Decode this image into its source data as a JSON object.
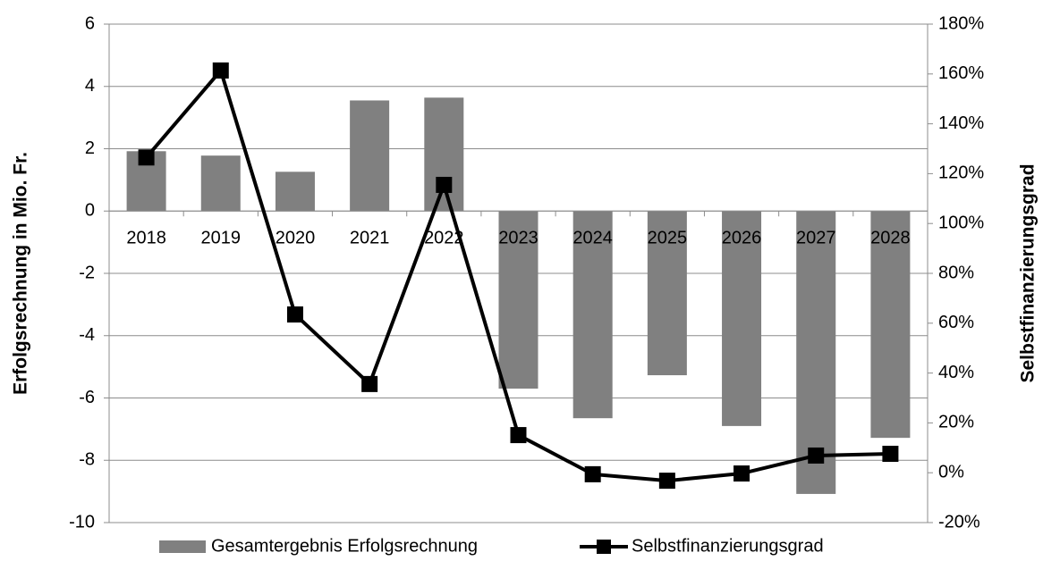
{
  "chart_data": {
    "type": "bar-line",
    "categories": [
      "2018",
      "2019",
      "2020",
      "2021",
      "2022",
      "2023",
      "2024",
      "2025",
      "2026",
      "2027",
      "2028"
    ],
    "ylabel": "Erfolgsrechnung in Mio. Fr.",
    "y2label": "Selbstfinanzierungsgrad",
    "ylim": [
      -10,
      6
    ],
    "yticks": [
      -10,
      -8,
      -6,
      -4,
      -2,
      0,
      2,
      4,
      6
    ],
    "y2lim": [
      -20,
      180
    ],
    "y2ticks": [
      {
        "value": -20,
        "label": "-20%"
      },
      {
        "value": 0,
        "label": "0%"
      },
      {
        "value": 20,
        "label": "20%"
      },
      {
        "value": 40,
        "label": "40%"
      },
      {
        "value": 60,
        "label": "60%"
      },
      {
        "value": 80,
        "label": "80%"
      },
      {
        "value": 100,
        "label": "100%"
      },
      {
        "value": 120,
        "label": "120%"
      },
      {
        "value": 140,
        "label": "140%"
      },
      {
        "value": 160,
        "label": "160%"
      },
      {
        "value": 180,
        "label": "180%"
      }
    ],
    "grid": true,
    "series": [
      {
        "name": "Gesamtergebnis Erfolgsrechnung",
        "type": "bar",
        "color": "#808080",
        "values": [
          1.92,
          1.78,
          1.26,
          3.55,
          3.64,
          -5.7,
          -6.65,
          -5.27,
          -6.9,
          -9.08,
          -7.28
        ]
      },
      {
        "name": "Selbstfinanzierungsgrad",
        "type": "line",
        "axis": "y2",
        "color": "#000000",
        "values": [
          126.5,
          161.4,
          63.5,
          35.6,
          115.5,
          15.1,
          -0.6,
          -3.2,
          -0.3,
          6.9,
          7.6
        ]
      }
    ]
  }
}
